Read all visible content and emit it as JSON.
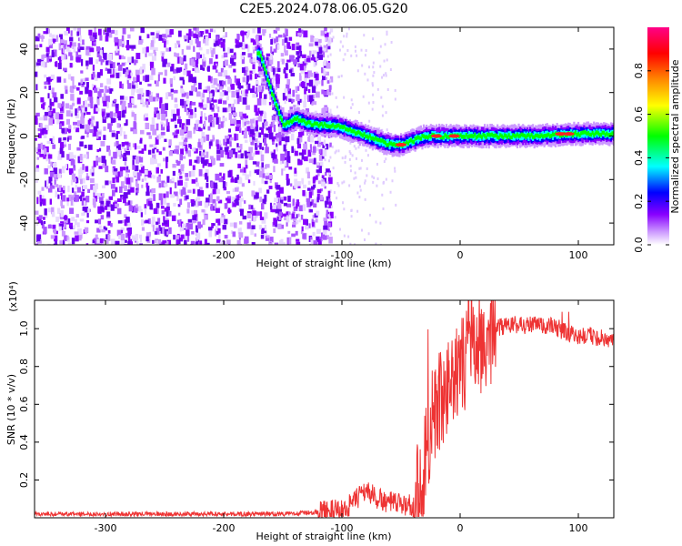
{
  "title": "C2E5.2024.078.06.05.G20",
  "chart_data": [
    {
      "type": "heatmap",
      "title": "C2E5.2024.078.06.05.G20",
      "xlabel": "Height of straight line (km)",
      "ylabel": "Frequency (Hz)",
      "xlim": [
        -360,
        130
      ],
      "ylim": [
        -50,
        50
      ],
      "x_ticks": [
        -300,
        -200,
        -100,
        0,
        100
      ],
      "y_ticks": [
        -40,
        -20,
        0,
        20,
        40
      ],
      "colorbar": {
        "label": "Normalized spectral amplitude",
        "range": [
          0,
          1
        ],
        "ticks": [
          "0.0",
          "0.2",
          "0.4",
          "0.6",
          "0.8"
        ],
        "colors": [
          "#ffffff",
          "#cc99ff",
          "#8800ff",
          "#0000ff",
          "#00ffff",
          "#00ff00",
          "#ffff00",
          "#ff8800",
          "#ff0000",
          "#ff0088"
        ]
      },
      "ridge": {
        "x": [
          -170,
          -160,
          -150,
          -140,
          -130,
          -120,
          -110,
          -100,
          -90,
          -80,
          -70,
          -60,
          -50,
          -40,
          -30,
          -20,
          -10,
          0,
          20,
          40,
          60,
          80,
          100,
          130
        ],
        "y": [
          38,
          20,
          5,
          8,
          6,
          5,
          5,
          4,
          2,
          0,
          -2,
          -4,
          -4,
          -2,
          0,
          0,
          0,
          0,
          0,
          0,
          0,
          0.5,
          1,
          1
        ]
      }
    },
    {
      "type": "line",
      "xlabel": "Height of straight line (km)",
      "ylabel": "SNR (10 * v/v)",
      "y_scale_label": "(x10⁴)",
      "xlim": [
        -360,
        130
      ],
      "ylim": [
        0,
        1.15
      ],
      "x_ticks": [
        -300,
        -200,
        -100,
        0,
        100
      ],
      "y_ticks": [
        "0.2",
        "0.4",
        "0.6",
        "0.8",
        "1.0"
      ],
      "color": "#ee3333",
      "x": [
        -360,
        -300,
        -250,
        -200,
        -150,
        -120,
        -100,
        -90,
        -80,
        -70,
        -60,
        -50,
        -40,
        -35,
        -30,
        -25,
        -20,
        -15,
        -10,
        0,
        10,
        20,
        30,
        40,
        60,
        80,
        90,
        100,
        110,
        130
      ],
      "y": [
        0.02,
        0.02,
        0.02,
        0.02,
        0.02,
        0.03,
        0.04,
        0.08,
        0.15,
        0.1,
        0.08,
        0.07,
        0.07,
        0.15,
        0.3,
        0.45,
        0.55,
        0.62,
        0.68,
        0.78,
        0.88,
        0.95,
        1.0,
        1.02,
        1.02,
        1.01,
        0.98,
        0.96,
        0.96,
        0.94
      ]
    }
  ]
}
